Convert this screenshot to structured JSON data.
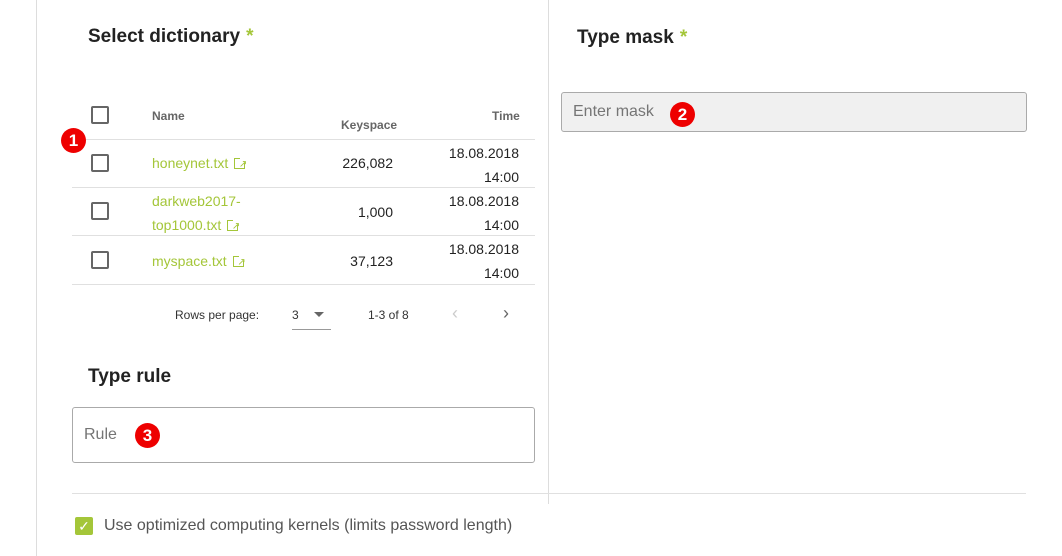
{
  "dictionary": {
    "title": "Select dictionary",
    "required_mark": "*",
    "columns": {
      "name": "Name",
      "keyspace": "Keyspace",
      "time": "Time"
    },
    "rows": [
      {
        "name": "honeynet.txt",
        "keyspace": "226,082",
        "date": "18.08.2018",
        "time": "14:00"
      },
      {
        "name_line1": "darkweb2017-",
        "name_line2": "top1000.txt",
        "keyspace": "1,000",
        "date": "18.08.2018",
        "time": "14:00"
      },
      {
        "name": "myspace.txt",
        "keyspace": "37,123",
        "date": "18.08.2018",
        "time": "14:00"
      }
    ],
    "pagination": {
      "rows_per_page_label": "Rows per page:",
      "rows_per_page": "3",
      "range": "1-3 of 8"
    }
  },
  "mask": {
    "title": "Type mask",
    "required_mark": "*",
    "placeholder": "Enter mask"
  },
  "rule": {
    "title": "Type rule",
    "placeholder": "Rule"
  },
  "optimized": {
    "label": "Use optimized computing kernels (limits password length)",
    "checked": true
  },
  "badges": [
    "1",
    "2",
    "3"
  ],
  "accent": "#a4c639"
}
